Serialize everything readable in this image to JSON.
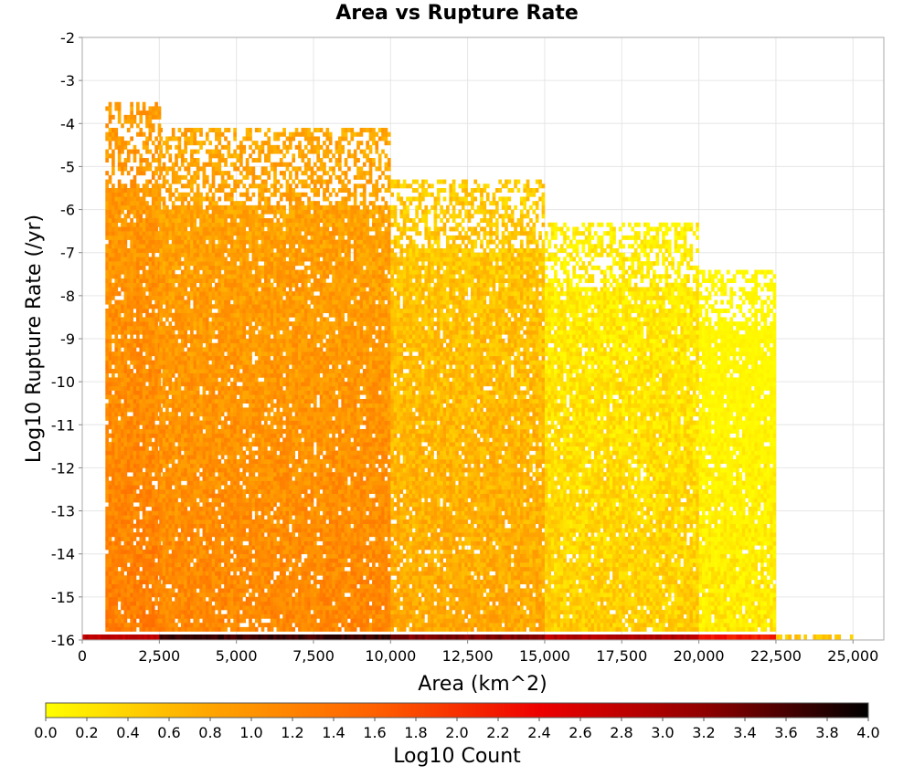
{
  "chart_data": {
    "type": "heatmap",
    "title": "Area vs Rupture Rate",
    "xlabel": "Area (km^2)",
    "ylabel": "Log10 Rupture Rate (/yr)",
    "xlim": [
      0,
      26000
    ],
    "ylim": [
      -16,
      -2
    ],
    "x_ticks": [
      0,
      2500,
      5000,
      7500,
      10000,
      12500,
      15000,
      17500,
      20000,
      22500,
      25000
    ],
    "x_tick_labels": [
      "0",
      "2,500",
      "5,000",
      "7,500",
      "10,000",
      "12,500",
      "15,000",
      "17,500",
      "20,000",
      "22,500",
      "25,000"
    ],
    "y_ticks": [
      -2,
      -3,
      -4,
      -5,
      -6,
      -7,
      -8,
      -9,
      -10,
      -11,
      -12,
      -13,
      -14,
      -15,
      -16
    ],
    "y_tick_labels": [
      "-2",
      "-3",
      "-4",
      "-5",
      "-6",
      "-7",
      "-8",
      "-9",
      "-10",
      "-11",
      "-12",
      "-13",
      "-14",
      "-15",
      "-16"
    ],
    "grid": true,
    "colorbar": {
      "label": "Log10 Count",
      "range": [
        0.0,
        4.0
      ],
      "ticks": [
        0.0,
        0.2,
        0.4,
        0.6,
        0.8,
        1.0,
        1.2,
        1.4,
        1.6,
        1.8,
        2.0,
        2.2,
        2.4,
        2.6,
        2.8,
        3.0,
        3.2,
        3.4,
        3.6,
        3.8,
        4.0
      ],
      "tick_labels": [
        "0.0",
        "0.2",
        "0.4",
        "0.6",
        "0.8",
        "1.0",
        "1.2",
        "1.4",
        "1.6",
        "1.8",
        "2.0",
        "2.2",
        "2.4",
        "2.6",
        "2.8",
        "3.0",
        "3.2",
        "3.4",
        "3.6",
        "3.8",
        "4.0"
      ],
      "colors": [
        "#ffff00",
        "#ffa500",
        "#ff6000",
        "#ee0000",
        "#900000",
        "#000000"
      ]
    },
    "cell_width": 100,
    "cell_height": 0.1,
    "regions": [
      {
        "x": [
          750,
          2500
        ],
        "y": [
          -15.8,
          -3.6
        ],
        "value": 1.25
      },
      {
        "x": [
          2500,
          10000
        ],
        "y": [
          -15.8,
          -4.2
        ],
        "value": 1.15
      },
      {
        "x": [
          10000,
          15000
        ],
        "y": [
          -15.8,
          -5.4
        ],
        "value": 0.8
      },
      {
        "x": [
          15000,
          20000
        ],
        "y": [
          -15.8,
          -6.4
        ],
        "value": 0.45
      },
      {
        "x": [
          20000,
          22500
        ],
        "y": [
          -15.8,
          -7.5
        ],
        "value": 0.2
      }
    ],
    "zero_rate_row": {
      "y": -16,
      "segments": [
        {
          "x": [
            0,
            2500
          ],
          "value": 2.8
        },
        {
          "x": [
            2500,
            10000
          ],
          "value": 3.7
        },
        {
          "x": [
            10000,
            15000
          ],
          "value": 3.3
        },
        {
          "x": [
            15000,
            20000
          ],
          "value": 2.9
        },
        {
          "x": [
            20000,
            22500
          ],
          "value": 2.2
        },
        {
          "x": [
            22500,
            25000
          ],
          "value": 0.5
        }
      ]
    }
  }
}
